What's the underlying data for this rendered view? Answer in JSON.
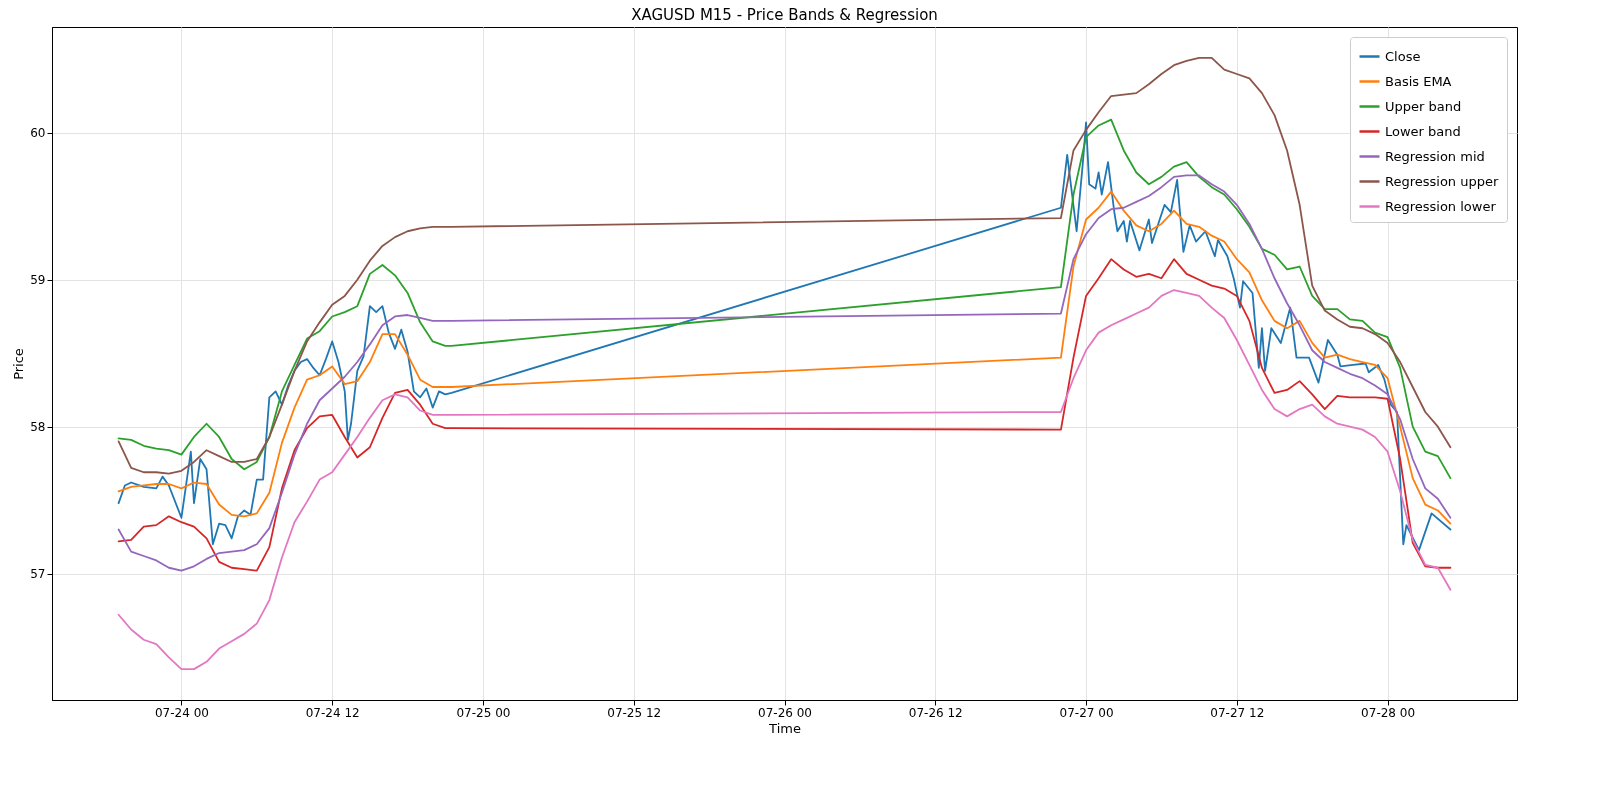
{
  "chart_data": {
    "type": "line",
    "title": "XAGUSD M15 - Price Bands & Regression",
    "xlabel": "Time",
    "ylabel": "Price",
    "grid": true,
    "legend": "top right",
    "xlim": [
      "--07-23T13:42",
      "--07-28T10:18"
    ],
    "ylim": [
      56.14,
      60.72
    ],
    "xticks": [
      {
        "value": "--07-24T00:00",
        "label": "07-24 00"
      },
      {
        "value": "--07-24T12:00",
        "label": "07-24 12"
      },
      {
        "value": "--07-25T00:00",
        "label": "07-25 00"
      },
      {
        "value": "--07-25T12:00",
        "label": "07-25 12"
      },
      {
        "value": "--07-26T00:00",
        "label": "07-26 00"
      },
      {
        "value": "--07-26T12:00",
        "label": "07-26 12"
      },
      {
        "value": "--07-27T00:00",
        "label": "07-27 00"
      },
      {
        "value": "--07-27T12:00",
        "label": "07-27 12"
      },
      {
        "value": "--07-28T00:00",
        "label": "07-28 00"
      }
    ],
    "yticks": [
      57,
      58,
      59,
      60
    ],
    "x": [
      "--07-23T19:00",
      "--07-23T20:00",
      "--07-23T21:00",
      "--07-23T22:00",
      "--07-23T23:00",
      "--07-24T00:00",
      "--07-24T01:00",
      "--07-24T02:00",
      "--07-24T03:00",
      "--07-24T04:00",
      "--07-24T05:00",
      "--07-24T06:00",
      "--07-24T07:00",
      "--07-24T08:00",
      "--07-24T09:00",
      "--07-24T10:00",
      "--07-24T11:00",
      "--07-24T12:00",
      "--07-24T13:00",
      "--07-24T14:00",
      "--07-24T15:00",
      "--07-24T16:00",
      "--07-24T17:00",
      "--07-24T18:00",
      "--07-24T19:00",
      "--07-24T20:00",
      "--07-24T21:00",
      "--07-24T21:30",
      "--07-26T22:00",
      "--07-26T23:00",
      "--07-27T00:00",
      "--07-27T01:00",
      "--07-27T02:00",
      "--07-27T03:00",
      "--07-27T04:00",
      "--07-27T05:00",
      "--07-27T06:00",
      "--07-27T07:00",
      "--07-27T08:00",
      "--07-27T09:00",
      "--07-27T10:00",
      "--07-27T11:00",
      "--07-27T12:00",
      "--07-27T13:00",
      "--07-27T14:00",
      "--07-27T15:00",
      "--07-27T16:00",
      "--07-27T17:00",
      "--07-27T18:00",
      "--07-27T19:00",
      "--07-27T20:00",
      "--07-27T21:00",
      "--07-27T22:00",
      "--07-27T23:00",
      "--07-28T00:00",
      "--07-28T01:00",
      "--07-28T02:00",
      "--07-28T03:00",
      "--07-28T04:00",
      "--07-28T05:00"
    ],
    "series": [
      {
        "name": "Close",
        "color": "#1f77b4",
        "x": [
          "--07-23T19:00",
          "--07-23T19:30",
          "--07-23T20:00",
          "--07-23T21:00",
          "--07-23T22:00",
          "--07-23T22:30",
          "--07-23T23:00",
          "--07-24T00:00",
          "--07-24T00:45",
          "--07-24T01:00",
          "--07-24T01:30",
          "--07-24T02:00",
          "--07-24T02:30",
          "--07-24T03:00",
          "--07-24T03:30",
          "--07-24T04:00",
          "--07-24T04:30",
          "--07-24T05:00",
          "--07-24T05:30",
          "--07-24T06:00",
          "--07-24T06:30",
          "--07-24T07:00",
          "--07-24T07:30",
          "--07-24T08:00",
          "--07-24T08:30",
          "--07-24T09:00",
          "--07-24T09:30",
          "--07-24T10:00",
          "--07-24T10:30",
          "--07-24T11:00",
          "--07-24T11:30",
          "--07-24T12:00",
          "--07-24T12:30",
          "--07-24T13:00",
          "--07-24T13:15",
          "--07-24T13:30",
          "--07-24T14:00",
          "--07-24T14:30",
          "--07-24T15:00",
          "--07-24T15:30",
          "--07-24T16:00",
          "--07-24T16:30",
          "--07-24T17:00",
          "--07-24T17:30",
          "--07-24T18:00",
          "--07-24T18:30",
          "--07-24T19:00",
          "--07-24T19:30",
          "--07-24T20:00",
          "--07-24T20:30",
          "--07-24T21:00",
          "--07-24T21:30",
          "--07-26T22:00",
          "--07-26T22:30",
          "--07-26T23:15",
          "--07-26T23:45",
          "--07-27T00:00",
          "--07-27T00:15",
          "--07-27T00:45",
          "--07-27T01:00",
          "--07-27T01:15",
          "--07-27T01:45",
          "--07-27T02:15",
          "--07-27T02:30",
          "--07-27T03:00",
          "--07-27T03:15",
          "--07-27T03:30",
          "--07-27T04:15",
          "--07-27T05:00",
          "--07-27T05:15",
          "--07-27T06:15",
          "--07-27T06:45",
          "--07-27T07:15",
          "--07-27T07:45",
          "--07-27T08:15",
          "--07-27T08:45",
          "--07-27T09:30",
          "--07-27T10:15",
          "--07-27T10:30",
          "--07-27T11:15",
          "--07-27T11:45",
          "--07-27T12:15",
          "--07-27T12:30",
          "--07-27T13:15",
          "--07-27T13:45",
          "--07-27T14:00",
          "--07-27T14:15",
          "--07-27T14:45",
          "--07-27T15:30",
          "--07-27T16:15",
          "--07-27T16:45",
          "--07-27T17:45",
          "--07-27T18:30",
          "--07-27T19:15",
          "--07-27T20:00",
          "--07-27T20:15",
          "--07-27T21:15",
          "--07-27T22:15",
          "--07-27T22:30",
          "--07-27T23:15",
          "--07-27T23:45",
          "--07-28T00:15",
          "--07-28T00:45",
          "--07-28T01:15",
          "--07-28T01:30",
          "--07-28T02:30",
          "--07-28T03:30",
          "--07-28T05:00"
        ],
        "values": [
          57.48,
          57.6,
          57.62,
          57.59,
          57.58,
          57.66,
          57.6,
          57.38,
          57.83,
          57.48,
          57.78,
          57.71,
          57.2,
          57.34,
          57.33,
          57.24,
          57.39,
          57.43,
          57.4,
          57.64,
          57.64,
          58.2,
          58.24,
          58.15,
          58.28,
          58.38,
          58.44,
          58.46,
          58.4,
          58.35,
          58.46,
          58.58,
          58.44,
          58.24,
          57.91,
          58.02,
          58.38,
          58.48,
          58.82,
          58.78,
          58.82,
          58.64,
          58.53,
          58.66,
          58.51,
          58.24,
          58.2,
          58.26,
          58.13,
          58.24,
          58.22,
          58.23,
          59.49,
          59.85,
          59.33,
          59.8,
          60.07,
          59.65,
          59.62,
          59.73,
          59.58,
          59.8,
          59.46,
          59.33,
          59.4,
          59.26,
          59.4,
          59.2,
          59.41,
          59.25,
          59.51,
          59.46,
          59.68,
          59.19,
          59.37,
          59.26,
          59.33,
          59.16,
          59.27,
          59.16,
          59.01,
          58.81,
          58.99,
          58.91,
          58.4,
          58.67,
          58.38,
          58.67,
          58.57,
          58.81,
          58.47,
          58.47,
          58.3,
          58.59,
          58.49,
          58.41,
          58.42,
          58.43,
          58.37,
          58.42,
          58.32,
          58.15,
          58.1,
          57.2,
          57.33,
          57.16,
          57.41,
          57.3
        ]
      },
      {
        "name": "Basis EMA",
        "color": "#ff7f0e",
        "values": [
          57.56,
          57.59,
          57.6,
          57.61,
          57.61,
          57.58,
          57.62,
          57.61,
          57.47,
          57.4,
          57.39,
          57.41,
          57.55,
          57.89,
          58.13,
          58.32,
          58.35,
          58.41,
          58.29,
          58.31,
          58.44,
          58.63,
          58.63,
          58.49,
          58.32,
          58.27,
          58.27,
          58.27,
          58.47,
          59.09,
          59.41,
          59.49,
          59.6,
          59.47,
          59.37,
          59.33,
          59.38,
          59.47,
          59.38,
          59.36,
          59.3,
          59.26,
          59.14,
          59.05,
          58.86,
          58.72,
          58.67,
          58.72,
          58.57,
          58.47,
          58.49,
          58.46,
          58.44,
          58.42,
          58.33,
          58.0,
          57.65,
          57.47,
          57.43,
          57.34
        ]
      },
      {
        "name": "Upper band",
        "color": "#2ca02c",
        "values": [
          57.92,
          57.91,
          57.87,
          57.85,
          57.84,
          57.81,
          57.93,
          58.02,
          57.93,
          57.78,
          57.71,
          57.76,
          57.93,
          58.24,
          58.42,
          58.6,
          58.65,
          58.75,
          58.78,
          58.82,
          59.04,
          59.1,
          59.03,
          58.91,
          58.71,
          58.58,
          58.55,
          58.55,
          58.95,
          59.58,
          59.97,
          60.05,
          60.09,
          59.88,
          59.73,
          59.65,
          59.7,
          59.77,
          59.8,
          59.7,
          59.63,
          59.58,
          59.48,
          59.36,
          59.21,
          59.17,
          59.07,
          59.09,
          58.89,
          58.8,
          58.8,
          58.73,
          58.72,
          58.64,
          58.61,
          58.4,
          58.0,
          57.83,
          57.8,
          57.65
        ]
      },
      {
        "name": "Lower band",
        "color": "#d62728",
        "values": [
          57.22,
          57.23,
          57.32,
          57.33,
          57.39,
          57.35,
          57.32,
          57.24,
          57.08,
          57.04,
          57.03,
          57.02,
          57.18,
          57.58,
          57.84,
          57.99,
          58.07,
          58.08,
          57.93,
          57.79,
          57.86,
          58.06,
          58.23,
          58.25,
          58.15,
          58.02,
          57.99,
          57.99,
          57.98,
          58.47,
          58.89,
          59.01,
          59.14,
          59.07,
          59.02,
          59.04,
          59.01,
          59.14,
          59.04,
          59.0,
          58.96,
          58.94,
          58.89,
          58.72,
          58.4,
          58.23,
          58.25,
          58.31,
          58.22,
          58.12,
          58.21,
          58.2,
          58.2,
          58.2,
          58.19,
          57.78,
          57.21,
          57.05,
          57.04,
          57.04
        ]
      },
      {
        "name": "Regression mid",
        "color": "#9467bd",
        "values": [
          57.3,
          57.15,
          57.12,
          57.09,
          57.04,
          57.02,
          57.05,
          57.1,
          57.14,
          57.15,
          57.16,
          57.2,
          57.31,
          57.55,
          57.81,
          58.02,
          58.18,
          58.26,
          58.34,
          58.44,
          58.56,
          58.69,
          58.75,
          58.76,
          58.74,
          58.72,
          58.72,
          58.72,
          58.77,
          59.14,
          59.31,
          59.42,
          59.48,
          59.49,
          59.53,
          59.57,
          59.63,
          59.7,
          59.71,
          59.71,
          59.65,
          59.6,
          59.51,
          59.38,
          59.21,
          59.01,
          58.84,
          58.69,
          58.52,
          58.44,
          58.4,
          58.36,
          58.33,
          58.28,
          58.22,
          58.05,
          57.78,
          57.58,
          57.51,
          57.38
        ]
      },
      {
        "name": "Regression upper",
        "color": "#8c564b",
        "values": [
          57.9,
          57.72,
          57.69,
          57.69,
          57.68,
          57.7,
          57.76,
          57.84,
          57.8,
          57.76,
          57.76,
          57.78,
          57.93,
          58.15,
          58.38,
          58.58,
          58.71,
          58.83,
          58.89,
          59.0,
          59.13,
          59.23,
          59.29,
          59.33,
          59.35,
          59.36,
          59.36,
          59.36,
          59.42,
          59.88,
          60.02,
          60.14,
          60.25,
          60.26,
          60.27,
          60.33,
          60.4,
          60.46,
          60.49,
          60.51,
          60.51,
          60.43,
          60.4,
          60.37,
          60.27,
          60.12,
          59.88,
          59.51,
          58.96,
          58.79,
          58.73,
          58.68,
          58.67,
          58.63,
          58.57,
          58.44,
          58.27,
          58.1,
          58.0,
          57.86
        ]
      },
      {
        "name": "Regression lower",
        "color": "#e377c2",
        "values": [
          56.72,
          56.62,
          56.55,
          56.52,
          56.43,
          56.35,
          56.35,
          56.4,
          56.49,
          56.54,
          56.59,
          56.66,
          56.82,
          57.11,
          57.35,
          57.49,
          57.64,
          57.69,
          57.81,
          57.93,
          58.06,
          58.18,
          58.22,
          58.2,
          58.11,
          58.08,
          58.08,
          58.08,
          58.1,
          58.33,
          58.52,
          58.64,
          58.69,
          58.73,
          58.77,
          58.81,
          58.89,
          58.93,
          58.91,
          58.89,
          58.81,
          58.74,
          58.59,
          58.42,
          58.25,
          58.12,
          58.07,
          58.12,
          58.15,
          58.07,
          58.02,
          58.0,
          57.98,
          57.93,
          57.83,
          57.56,
          57.23,
          57.06,
          57.04,
          56.89
        ]
      }
    ]
  }
}
